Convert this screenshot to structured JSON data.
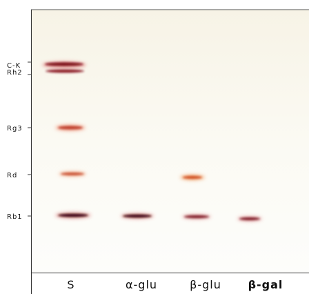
{
  "spot_labels": [
    "C-K",
    "Rh2",
    "Rg3",
    "Rd",
    "Rb1"
  ],
  "lanes": [
    "S",
    "α-glu",
    "β-glu",
    "β-gal"
  ]
}
